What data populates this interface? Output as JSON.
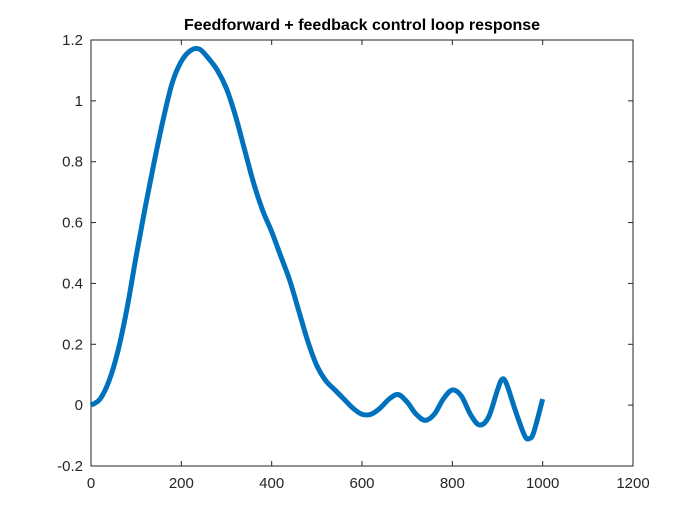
{
  "chart_data": {
    "type": "line",
    "title": "Feedforward + feedback control loop response",
    "xlabel": "",
    "ylabel": "",
    "xlim": [
      0,
      1200
    ],
    "ylim": [
      -0.2,
      1.2
    ],
    "xticks": [
      0,
      200,
      400,
      600,
      800,
      1000,
      1200
    ],
    "yticks": [
      -0.2,
      0,
      0.2,
      0.4,
      0.6,
      0.8,
      1,
      1.2
    ],
    "xtick_labels": [
      "0",
      "200",
      "400",
      "600",
      "800",
      "1000",
      "1200"
    ],
    "ytick_labels": [
      "-0.2",
      "0",
      "0.2",
      "0.4",
      "0.6",
      "0.8",
      "1",
      "1.2"
    ],
    "grid": false,
    "box": true,
    "line_color": "#0072BD",
    "series": [
      {
        "x": [
          0,
          20,
          40,
          60,
          80,
          100,
          120,
          140,
          160,
          180,
          200,
          220,
          240,
          260,
          280,
          300,
          320,
          340,
          360,
          380,
          400,
          420,
          440,
          460,
          480,
          500,
          520,
          540,
          560,
          580,
          600,
          620,
          640,
          660,
          680,
          700,
          720,
          740,
          760,
          780,
          800,
          820,
          840,
          860,
          880,
          900,
          910,
          920,
          940,
          960,
          970,
          980,
          1000
        ],
        "y": [
          0,
          0.02,
          0.08,
          0.18,
          0.32,
          0.49,
          0.65,
          0.8,
          0.94,
          1.06,
          1.13,
          1.165,
          1.17,
          1.14,
          1.1,
          1.04,
          0.95,
          0.84,
          0.73,
          0.64,
          0.57,
          0.49,
          0.41,
          0.31,
          0.21,
          0.13,
          0.08,
          0.05,
          0.02,
          -0.01,
          -0.03,
          -0.03,
          -0.01,
          0.02,
          0.035,
          0.01,
          -0.03,
          -0.05,
          -0.03,
          0.02,
          0.05,
          0.03,
          -0.03,
          -0.065,
          -0.04,
          0.05,
          0.085,
          0.07,
          -0.02,
          -0.1,
          -0.11,
          -0.09,
          0.02
        ]
      }
    ]
  }
}
